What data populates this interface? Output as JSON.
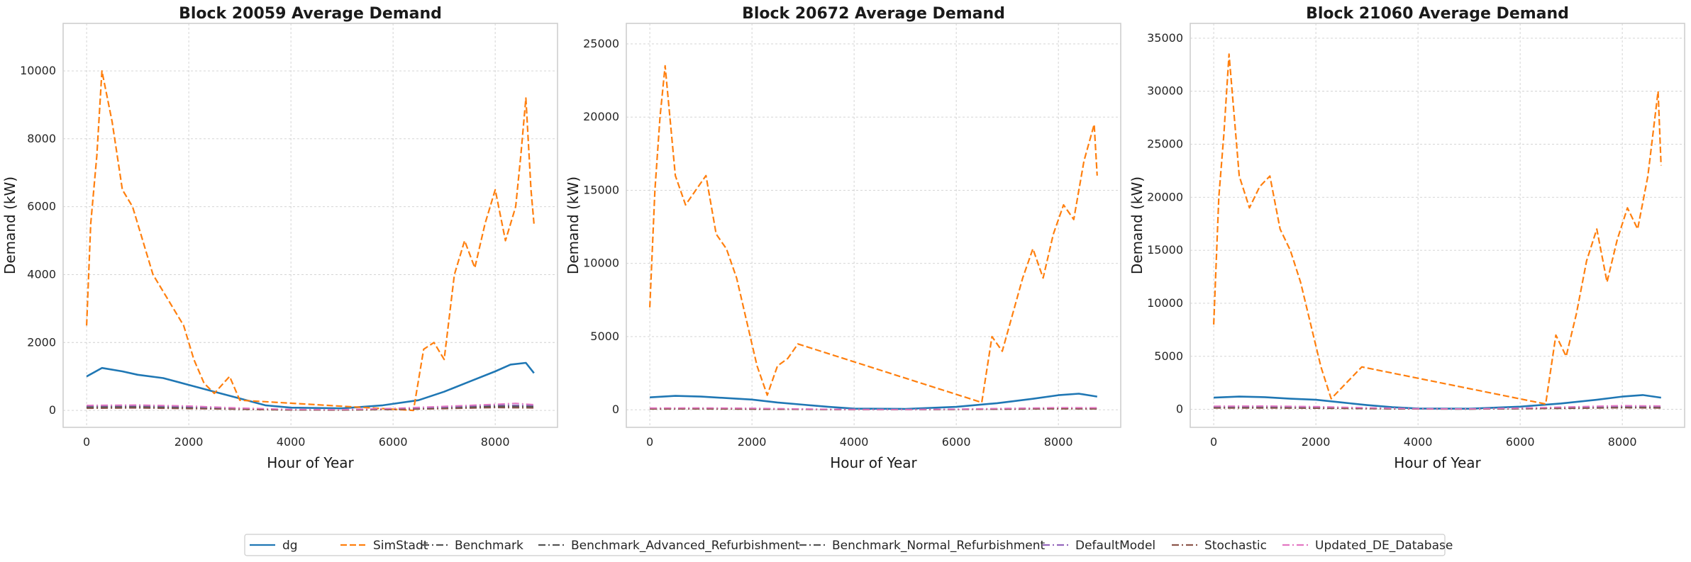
{
  "chart_data": [
    {
      "type": "line",
      "title": "Block 20059 Average Demand",
      "xlabel": "Hour of Year",
      "ylabel": "Demand (kW)",
      "xlim": [
        -460,
        9220
      ],
      "ylim": [
        -500,
        11400
      ],
      "xticks": [
        0,
        2000,
        4000,
        6000,
        8000
      ],
      "yticks": [
        0,
        2000,
        4000,
        6000,
        8000,
        10000
      ],
      "grid": true,
      "series": [
        {
          "name": "dg",
          "x": [
            0,
            300,
            700,
            1000,
            1500,
            2000,
            2500,
            3000,
            3500,
            4000,
            5000,
            5800,
            6500,
            7000,
            7500,
            8000,
            8300,
            8600,
            8759
          ],
          "values": [
            1000,
            1250,
            1150,
            1050,
            950,
            750,
            550,
            350,
            150,
            80,
            60,
            150,
            300,
            550,
            850,
            1150,
            1350,
            1400,
            1100
          ]
        },
        {
          "name": "SimStadt",
          "x": [
            0,
            80,
            200,
            300,
            500,
            700,
            900,
            1100,
            1300,
            1500,
            1700,
            1900,
            2100,
            2300,
            2500,
            2800,
            3000,
            6400,
            6600,
            6800,
            7000,
            7200,
            7400,
            7600,
            7800,
            8000,
            8200,
            8400,
            8500,
            8600,
            8700,
            8759
          ],
          "values": [
            2500,
            5500,
            7500,
            10000,
            8500,
            6500,
            6000,
            5000,
            4000,
            3500,
            3000,
            2500,
            1500,
            800,
            500,
            1000,
            300,
            0,
            1800,
            2000,
            1500,
            4000,
            5000,
            4200,
            5500,
            6500,
            5000,
            6000,
            7500,
            9200,
            6500,
            5500
          ]
        },
        {
          "name": "Benchmark",
          "x": [
            0,
            1000,
            2000,
            3000,
            4000,
            5000,
            6000,
            7000,
            8000,
            8759
          ],
          "values": [
            110,
            120,
            90,
            50,
            20,
            15,
            40,
            90,
            130,
            120
          ]
        },
        {
          "name": "Benchmark_Advanced_Refurbishment",
          "x": [
            0,
            1000,
            2000,
            3000,
            4000,
            5000,
            6000,
            7000,
            8000,
            8759
          ],
          "values": [
            80,
            85,
            65,
            35,
            15,
            10,
            30,
            65,
            95,
            85
          ]
        },
        {
          "name": "Benchmark_Normal_Refurbishment",
          "x": [
            0,
            1000,
            2000,
            3000,
            4000,
            5000,
            6000,
            7000,
            8000,
            8759
          ],
          "values": [
            95,
            100,
            80,
            45,
            18,
            12,
            35,
            75,
            110,
            100
          ]
        },
        {
          "name": "DefaultModel",
          "x": [
            0,
            1000,
            2000,
            3000,
            4000,
            5000,
            6000,
            7000,
            8000,
            8759
          ],
          "values": [
            130,
            140,
            110,
            60,
            25,
            20,
            50,
            100,
            160,
            150
          ]
        },
        {
          "name": "Stochastic",
          "x": [
            0,
            1000,
            2000,
            3000,
            4000,
            5000,
            6000,
            7000,
            8000,
            8759
          ],
          "values": [
            60,
            70,
            50,
            30,
            10,
            8,
            25,
            50,
            80,
            70
          ]
        },
        {
          "name": "Updated_DE_Database",
          "x": [
            0,
            1000,
            2000,
            3000,
            4000,
            5000,
            6000,
            7000,
            8000,
            8400,
            8759
          ],
          "values": [
            150,
            160,
            130,
            70,
            30,
            25,
            60,
            120,
            180,
            210,
            170
          ]
        }
      ]
    },
    {
      "type": "line",
      "title": "Block 20672 Average Demand",
      "xlabel": "Hour of Year",
      "ylabel": "Demand (kW)",
      "xlim": [
        -460,
        9220
      ],
      "ylim": [
        -1200,
        26400
      ],
      "xticks": [
        0,
        2000,
        4000,
        6000,
        8000
      ],
      "yticks": [
        0,
        5000,
        10000,
        15000,
        20000,
        25000
      ],
      "grid": true,
      "series": [
        {
          "name": "dg",
          "x": [
            0,
            500,
            1000,
            1500,
            2000,
            2500,
            3000,
            3500,
            4000,
            5000,
            6000,
            6800,
            7500,
            8000,
            8400,
            8759
          ],
          "values": [
            850,
            950,
            900,
            800,
            700,
            500,
            350,
            200,
            80,
            60,
            200,
            450,
            750,
            1000,
            1100,
            900
          ]
        },
        {
          "name": "SimStadt",
          "x": [
            0,
            100,
            200,
            300,
            500,
            700,
            900,
            1100,
            1300,
            1500,
            1700,
            1900,
            2100,
            2300,
            2500,
            2700,
            2900,
            6500,
            6700,
            6900,
            7100,
            7300,
            7500,
            7700,
            7900,
            8100,
            8300,
            8500,
            8700,
            8759
          ],
          "values": [
            7000,
            15000,
            20000,
            23500,
            16000,
            14000,
            15000,
            16000,
            12000,
            11000,
            9000,
            6000,
            3000,
            1000,
            3000,
            3500,
            4500,
            500,
            5000,
            4000,
            6500,
            9000,
            11000,
            9000,
            12000,
            14000,
            13000,
            17000,
            19500,
            16000
          ]
        },
        {
          "name": "Benchmark",
          "x": [
            0,
            1000,
            2000,
            3000,
            4000,
            5000,
            6000,
            7000,
            8000,
            8759
          ],
          "values": [
            90,
            100,
            80,
            45,
            18,
            12,
            35,
            75,
            110,
            100
          ]
        },
        {
          "name": "Benchmark_Advanced_Refurbishment",
          "x": [
            0,
            1000,
            2000,
            3000,
            4000,
            5000,
            6000,
            7000,
            8000,
            8759
          ],
          "values": [
            60,
            65,
            50,
            30,
            12,
            8,
            25,
            50,
            75,
            65
          ]
        },
        {
          "name": "Benchmark_Normal_Refurbishment",
          "x": [
            0,
            1000,
            2000,
            3000,
            4000,
            5000,
            6000,
            7000,
            8000,
            8759
          ],
          "values": [
            75,
            85,
            65,
            38,
            15,
            10,
            30,
            60,
            90,
            80
          ]
        },
        {
          "name": "DefaultModel",
          "x": [
            0,
            1000,
            2000,
            3000,
            4000,
            5000,
            6000,
            7000,
            8000,
            8759
          ],
          "values": [
            100,
            110,
            90,
            50,
            20,
            15,
            40,
            85,
            125,
            115
          ]
        },
        {
          "name": "Stochastic",
          "x": [
            0,
            1000,
            2000,
            3000,
            4000,
            5000,
            6000,
            7000,
            8000,
            8759
          ],
          "values": [
            50,
            55,
            40,
            25,
            8,
            6,
            20,
            40,
            65,
            55
          ]
        },
        {
          "name": "Updated_DE_Database",
          "x": [
            0,
            1000,
            2000,
            3000,
            4000,
            5000,
            6000,
            7000,
            8000,
            8759
          ],
          "values": [
            120,
            130,
            105,
            60,
            25,
            20,
            50,
            100,
            150,
            140
          ]
        }
      ]
    },
    {
      "type": "line",
      "title": "Block 21060 Average Demand",
      "xlabel": "Hour of Year",
      "ylabel": "Demand (kW)",
      "xlim": [
        -460,
        9220
      ],
      "ylim": [
        -1700,
        36400
      ],
      "xticks": [
        0,
        2000,
        4000,
        6000,
        8000
      ],
      "yticks": [
        0,
        5000,
        10000,
        15000,
        20000,
        25000,
        30000,
        35000
      ],
      "grid": true,
      "series": [
        {
          "name": "dg",
          "x": [
            0,
            500,
            1000,
            1500,
            2000,
            2500,
            3000,
            3500,
            4000,
            5000,
            6000,
            6800,
            7500,
            8000,
            8400,
            8759
          ],
          "values": [
            1100,
            1200,
            1150,
            1000,
            900,
            650,
            400,
            200,
            80,
            60,
            250,
            550,
            900,
            1200,
            1350,
            1100
          ]
        },
        {
          "name": "SimStadt",
          "x": [
            0,
            100,
            200,
            300,
            500,
            700,
            900,
            1100,
            1300,
            1500,
            1700,
            1900,
            2100,
            2300,
            2500,
            2700,
            2900,
            6500,
            6700,
            6900,
            7100,
            7300,
            7500,
            7700,
            7900,
            8100,
            8300,
            8500,
            8700,
            8759
          ],
          "values": [
            8000,
            20000,
            26000,
            33500,
            22000,
            19000,
            21000,
            22000,
            17000,
            15000,
            12000,
            8000,
            4000,
            1000,
            2000,
            3000,
            4000,
            500,
            7000,
            5000,
            9000,
            14000,
            17000,
            12000,
            16000,
            19000,
            17000,
            22000,
            30000,
            23000
          ]
        },
        {
          "name": "Benchmark",
          "x": [
            0,
            1000,
            2000,
            3000,
            4000,
            5000,
            6000,
            7000,
            8000,
            8759
          ],
          "values": [
            200,
            220,
            170,
            100,
            40,
            30,
            80,
            160,
            240,
            220
          ]
        },
        {
          "name": "Benchmark_Advanced_Refurbishment",
          "x": [
            0,
            1000,
            2000,
            3000,
            4000,
            5000,
            6000,
            7000,
            8000,
            8759
          ],
          "values": [
            140,
            150,
            120,
            70,
            28,
            20,
            55,
            110,
            170,
            150
          ]
        },
        {
          "name": "Benchmark_Normal_Refurbishment",
          "x": [
            0,
            1000,
            2000,
            3000,
            4000,
            5000,
            6000,
            7000,
            8000,
            8759
          ],
          "values": [
            170,
            185,
            145,
            85,
            34,
            25,
            68,
            135,
            205,
            185
          ]
        },
        {
          "name": "DefaultModel",
          "x": [
            0,
            1000,
            2000,
            3000,
            4000,
            5000,
            6000,
            7000,
            8000,
            8759
          ],
          "values": [
            260,
            280,
            220,
            130,
            50,
            40,
            100,
            200,
            300,
            280
          ]
        },
        {
          "name": "Stochastic",
          "x": [
            0,
            1000,
            2000,
            3000,
            4000,
            5000,
            6000,
            7000,
            8000,
            8759
          ],
          "values": [
            110,
            120,
            95,
            55,
            22,
            16,
            45,
            90,
            135,
            120
          ]
        },
        {
          "name": "Updated_DE_Database",
          "x": [
            0,
            1000,
            2000,
            3000,
            4000,
            5000,
            6000,
            7000,
            8000,
            8759
          ],
          "values": [
            300,
            320,
            260,
            150,
            60,
            45,
            120,
            240,
            350,
            320
          ]
        }
      ]
    }
  ],
  "legend": {
    "placement": "bottom-center",
    "items": [
      {
        "label": "dg",
        "color": "#1f77b4",
        "dash": "solid"
      },
      {
        "label": "SimStadt",
        "color": "#ff7f0e",
        "dash": "dashed"
      },
      {
        "label": "Benchmark",
        "color": "#555555",
        "dash": "dashdot"
      },
      {
        "label": "Benchmark_Advanced_Refurbishment",
        "color": "#555555",
        "dash": "dashdot"
      },
      {
        "label": "Benchmark_Normal_Refurbishment",
        "color": "#555555",
        "dash": "dashdot"
      },
      {
        "label": "DefaultModel",
        "color": "#9467bd",
        "dash": "dashdot"
      },
      {
        "label": "Stochastic",
        "color": "#8c564b",
        "dash": "dashdot"
      },
      {
        "label": "Updated_DE_Database",
        "color": "#e377c2",
        "dash": "dashdot"
      }
    ]
  }
}
